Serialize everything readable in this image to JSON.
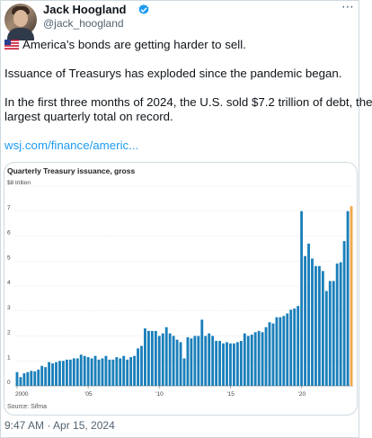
{
  "tweet": {
    "author_name": "Jack Hoogland",
    "author_handle": "@jack_hoogland",
    "flag_icon": "us-flag-icon",
    "line1": "America’s bonds are getting harder to sell.",
    "line2": "Issuance of Treasurys has exploded since the pandemic began.",
    "line3a": "In the first  three months of 2024, the U.S. sold $7.2 trillion of debt, the",
    "line3b": "largest quarterly total on record.",
    "link": "wsj.com/finance/americ...",
    "timestamp": "9:47 AM · Apr 15, 2024"
  },
  "colors": {
    "bar": "#1a7fba",
    "highlight": "#f0a94a",
    "link": "#1d9bf0",
    "verified": "#1d9bf0"
  },
  "chart_data": {
    "type": "bar",
    "title": "Quarterly Treasury issuance, gross",
    "source": "Source: Sifma",
    "ylabel": "",
    "xlabel": "",
    "ylim": [
      0,
      8
    ],
    "y_ticks": [
      0,
      1,
      2,
      3,
      4,
      5,
      6,
      7,
      8
    ],
    "y_tick_labels": [
      "0",
      "1",
      "2",
      "3",
      "4",
      "5",
      "6",
      "7",
      "$8 trillion"
    ],
    "x_tick_labels": [
      "2000",
      "'05",
      "'10",
      "'15",
      "'20"
    ],
    "x_tick_quarter_index": [
      0,
      20,
      40,
      60,
      80
    ],
    "highlight_last": true,
    "values": [
      0.55,
      0.35,
      0.5,
      0.55,
      0.6,
      0.58,
      0.65,
      0.8,
      0.75,
      0.95,
      0.9,
      0.95,
      1.0,
      1.0,
      1.05,
      1.05,
      1.1,
      1.1,
      1.25,
      1.2,
      1.15,
      1.1,
      1.2,
      1.05,
      1.1,
      1.2,
      1.05,
      1.05,
      1.15,
      1.1,
      1.2,
      1.05,
      1.15,
      1.2,
      1.5,
      1.6,
      2.3,
      2.2,
      2.2,
      2.2,
      2.0,
      2.1,
      2.35,
      2.1,
      2.0,
      1.85,
      1.75,
      1.1,
      1.95,
      1.9,
      2.0,
      2.0,
      2.65,
      2.0,
      2.1,
      2.0,
      1.8,
      1.8,
      1.7,
      1.75,
      1.7,
      1.7,
      1.75,
      1.8,
      2.1,
      2.0,
      2.05,
      2.15,
      2.2,
      2.15,
      2.35,
      2.55,
      2.5,
      2.75,
      2.75,
      2.8,
      2.9,
      3.05,
      3.1,
      3.2,
      7.0,
      5.2,
      5.7,
      5.1,
      4.8,
      4.8,
      4.6,
      3.8,
      4.2,
      4.2,
      4.9,
      4.95,
      5.8,
      7.0,
      7.2
    ]
  }
}
